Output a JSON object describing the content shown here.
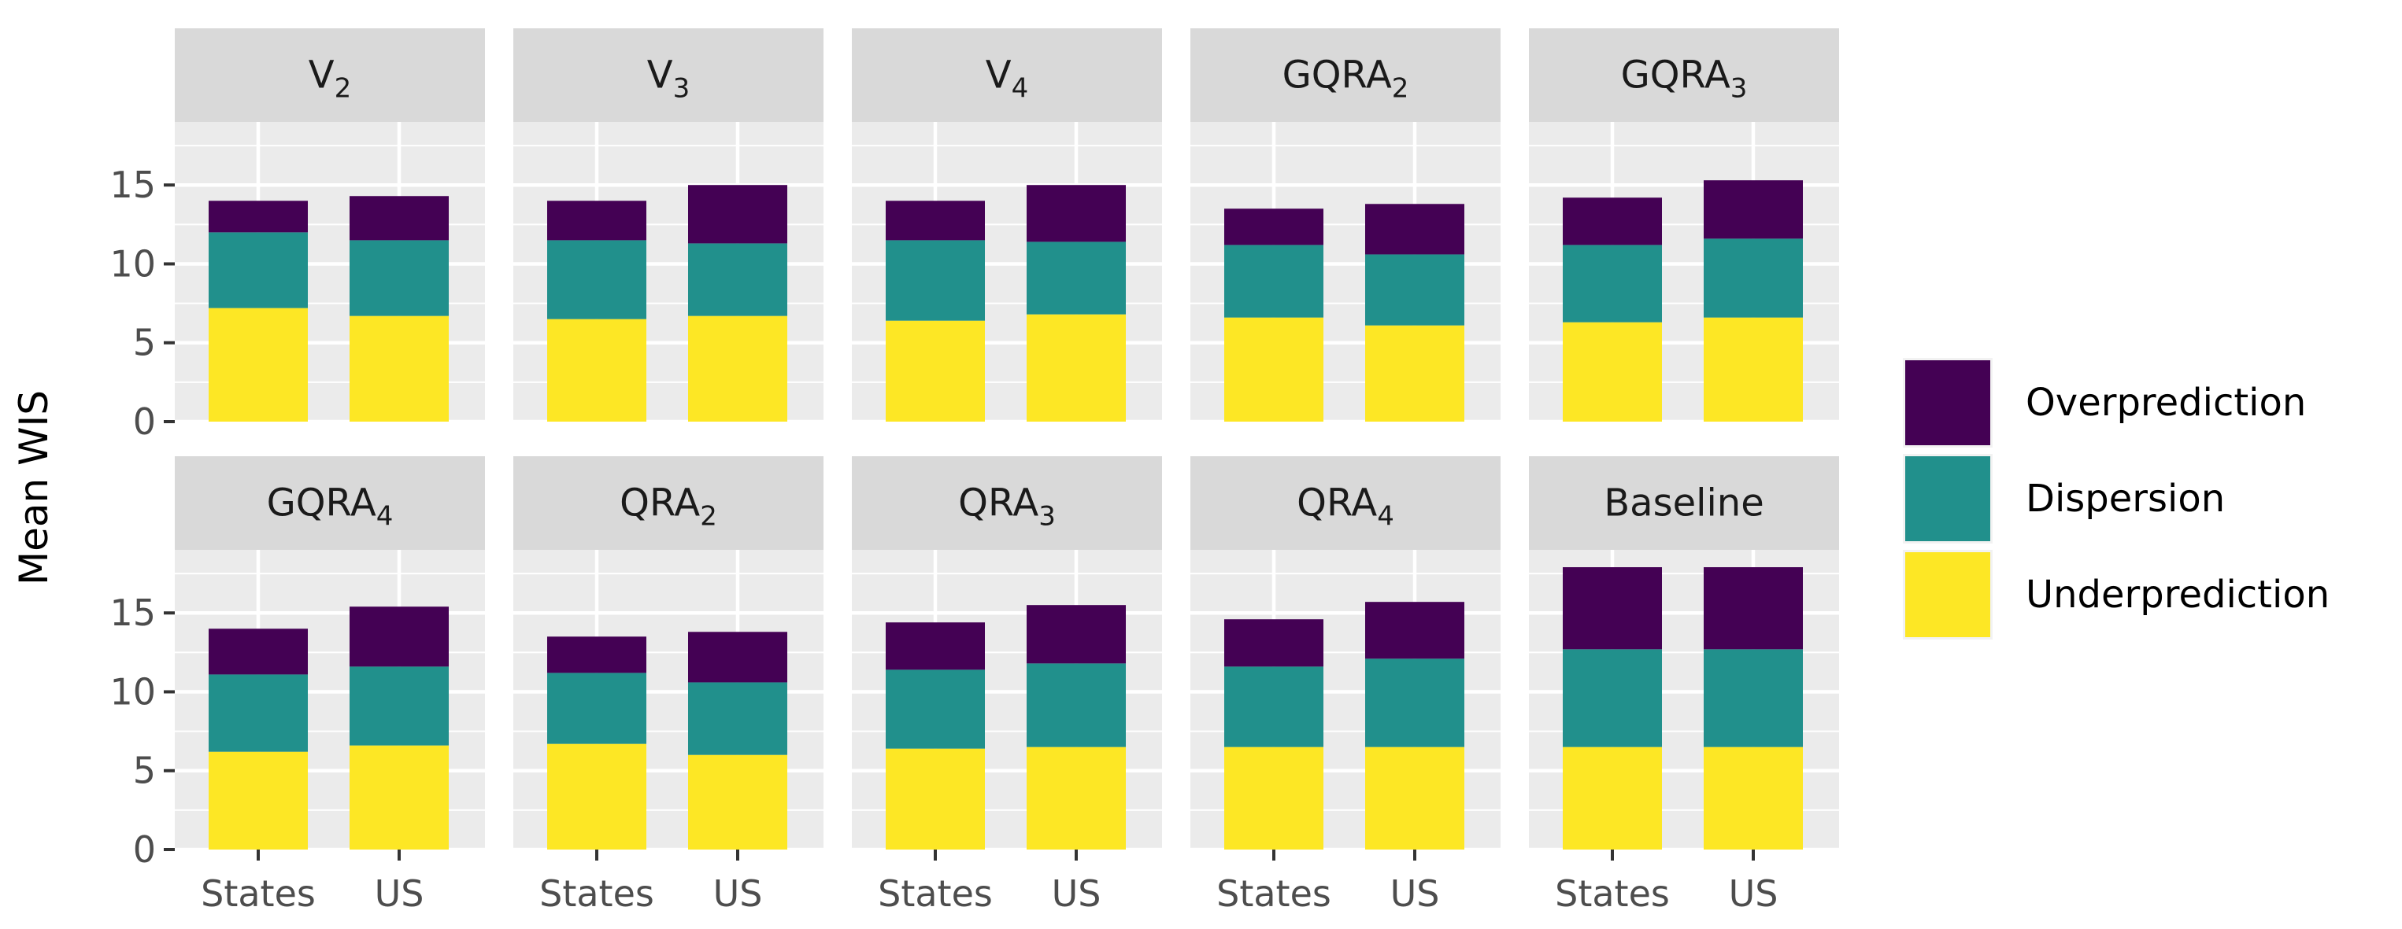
{
  "chart_data": {
    "type": "bar",
    "stacked": true,
    "ylabel": "Mean WIS",
    "xlabel": "",
    "categories": [
      "States",
      "US"
    ],
    "yticks": [
      0,
      5,
      10,
      15
    ],
    "ylim": [
      0,
      19
    ],
    "grid": true,
    "legend_position": "right",
    "legend": [
      {
        "name": "Overprediction",
        "color": "#440154"
      },
      {
        "name": "Dispersion",
        "color": "#21908C"
      },
      {
        "name": "Underprediction",
        "color": "#FDE725"
      }
    ],
    "panels": [
      {
        "title": "V",
        "sub": "2",
        "stacks": [
          {
            "under": 7.2,
            "disp": 4.8,
            "over": 2.0
          },
          {
            "under": 6.7,
            "disp": 4.8,
            "over": 2.8
          }
        ]
      },
      {
        "title": "V",
        "sub": "3",
        "stacks": [
          {
            "under": 6.5,
            "disp": 5.0,
            "over": 2.5
          },
          {
            "under": 6.7,
            "disp": 4.6,
            "over": 3.7
          }
        ]
      },
      {
        "title": "V",
        "sub": "4",
        "stacks": [
          {
            "under": 6.4,
            "disp": 5.1,
            "over": 2.5
          },
          {
            "under": 6.8,
            "disp": 4.6,
            "over": 3.6
          }
        ]
      },
      {
        "title": "GQRA",
        "sub": "2",
        "stacks": [
          {
            "under": 6.6,
            "disp": 4.6,
            "over": 2.3
          },
          {
            "under": 6.1,
            "disp": 4.5,
            "over": 3.2
          }
        ]
      },
      {
        "title": "GQRA",
        "sub": "3",
        "stacks": [
          {
            "under": 6.3,
            "disp": 4.9,
            "over": 3.0
          },
          {
            "under": 6.6,
            "disp": 5.0,
            "over": 3.7
          }
        ]
      },
      {
        "title": "GQRA",
        "sub": "4",
        "stacks": [
          {
            "under": 6.2,
            "disp": 4.9,
            "over": 2.9
          },
          {
            "under": 6.6,
            "disp": 5.0,
            "over": 3.8
          }
        ]
      },
      {
        "title": "QRA",
        "sub": "2",
        "stacks": [
          {
            "under": 6.7,
            "disp": 4.5,
            "over": 2.3
          },
          {
            "under": 6.0,
            "disp": 4.6,
            "over": 3.2
          }
        ]
      },
      {
        "title": "QRA",
        "sub": "3",
        "stacks": [
          {
            "under": 6.4,
            "disp": 5.0,
            "over": 3.0
          },
          {
            "under": 6.5,
            "disp": 5.3,
            "over": 3.7
          }
        ]
      },
      {
        "title": "QRA",
        "sub": "4",
        "stacks": [
          {
            "under": 6.5,
            "disp": 5.1,
            "over": 3.0
          },
          {
            "under": 6.5,
            "disp": 5.6,
            "over": 3.6
          }
        ]
      },
      {
        "title": "Baseline",
        "sub": "",
        "stacks": [
          {
            "under": 6.5,
            "disp": 6.2,
            "over": 5.2
          },
          {
            "under": 6.5,
            "disp": 6.2,
            "over": 5.2
          }
        ]
      }
    ]
  }
}
